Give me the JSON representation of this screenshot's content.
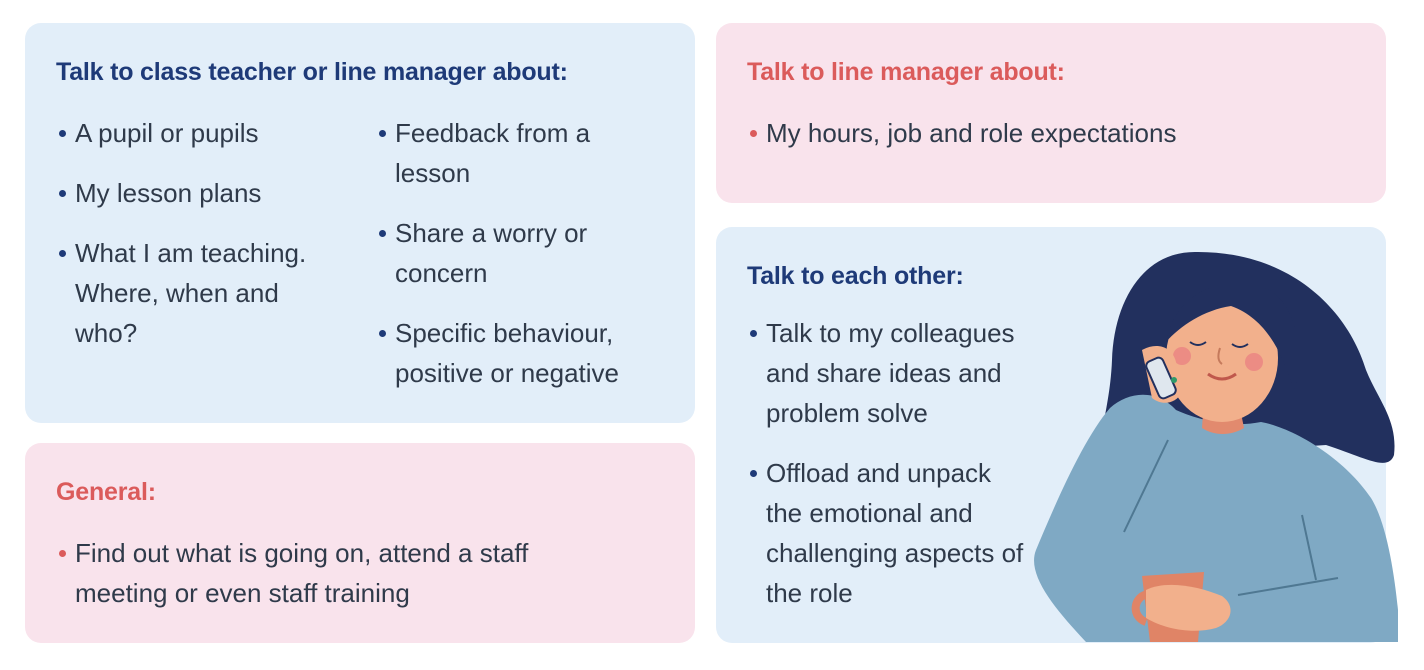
{
  "teacher_card": {
    "heading": "Talk to class teacher or line manager about:",
    "col1": [
      "A pupil or pupils",
      "My lesson plans",
      "What I am teaching. Where, when and who?"
    ],
    "col2": [
      "Feedback from a lesson",
      "Share a worry or concern",
      "Specific behaviour, positive or negative"
    ]
  },
  "general_card": {
    "heading": "General:",
    "items": [
      "Find out what is going on, attend a staff meeting or even staff training"
    ]
  },
  "manager_card": {
    "heading": "Talk to line manager about:",
    "items": [
      "My hours, job and role expectations"
    ]
  },
  "each_other_card": {
    "heading": "Talk to each other:",
    "items": [
      "Talk to my colleagues and share ideas and problem solve",
      "Offload and unpack the emotional and challenging aspects of the role"
    ]
  },
  "illustration": {
    "icon": "woman-on-phone-icon",
    "colors": {
      "hair": "#22305e",
      "skin": "#f2b08c",
      "sweater": "#7fa9c4",
      "mug": "#e08466",
      "cheeks": "#ec8c84"
    }
  },
  "colors": {
    "blue_card": "#e2eef9",
    "pink_card": "#f9e3ec",
    "navy": "#1e3a78",
    "coral": "#db5b5b",
    "text": "#2f3a4a"
  }
}
